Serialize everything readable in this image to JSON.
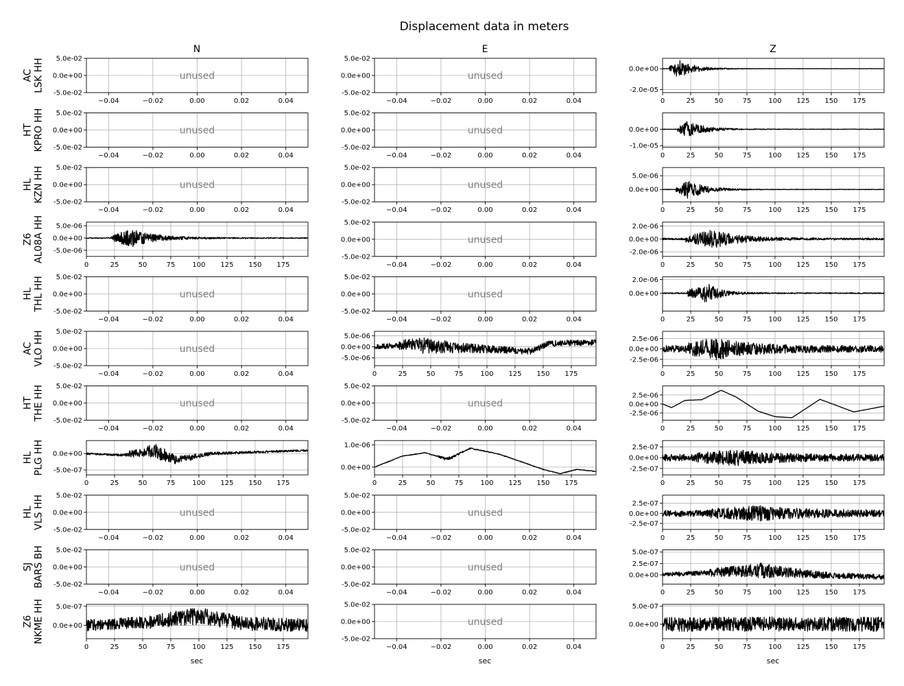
{
  "title": "Displacement data in meters",
  "column_titles": [
    "N",
    "E",
    "Z"
  ],
  "xlabel": "sec",
  "unused_label": "unused",
  "colors": {
    "trace": "#000000",
    "grid": "#b0b0b0",
    "unused_text": "#808080",
    "axes": "#000000"
  },
  "chart_data": {
    "type": "line",
    "title": "Displacement data in meters",
    "columns": [
      "N",
      "E",
      "Z"
    ],
    "xlabel": "sec",
    "grid": true,
    "unused_panel": {
      "text": "unused",
      "xlim": [
        -0.05,
        0.05
      ],
      "ylim": [
        -0.05,
        0.05
      ],
      "xticks": [
        "−0.04",
        "−0.02",
        "0.00",
        "0.02",
        "0.04"
      ],
      "yticks": [
        "5.0e-02",
        "0.0e+00",
        "-5.0e-02"
      ]
    },
    "time_xlim": [
      0,
      197
    ],
    "time_xticks": [
      "0",
      "25",
      "50",
      "75",
      "100",
      "125",
      "150",
      "175"
    ],
    "rows": [
      {
        "net": "AC",
        "sta": "LSK HH",
        "panels": [
          {
            "used": false
          },
          {
            "used": false
          },
          {
            "used": true,
            "ylim": [
              -2.3e-05,
              1e-05
            ],
            "yticks": [
              {
                "v": 0,
                "label": "0.0e+00"
              },
              {
                "v": -2e-05,
                "label": "-2.0e-05"
              }
            ],
            "onset": 6,
            "peak_t": 14,
            "amp": 9e-06,
            "decay": 14,
            "noise": 1.5e-07,
            "trend": []
          }
        ]
      },
      {
        "net": "HT",
        "sta": "KPRO HH",
        "panels": [
          {
            "used": false
          },
          {
            "used": false
          },
          {
            "used": true,
            "ylim": [
              -1.1e-05,
              1e-05
            ],
            "yticks": [
              {
                "v": 0,
                "label": "0.0e+00"
              },
              {
                "v": -1e-05,
                "label": "-1.0e-05"
              }
            ],
            "onset": 13,
            "peak_t": 22,
            "amp": 5e-06,
            "decay": 16,
            "noise": 1.5e-07,
            "trend": []
          }
        ]
      },
      {
        "net": "HL",
        "sta": "KZN HH",
        "panels": [
          {
            "used": false
          },
          {
            "used": false
          },
          {
            "used": true,
            "ylim": [
              -4.5e-06,
              8e-06
            ],
            "yticks": [
              {
                "v": 5e-06,
                "label": "5.0e-06"
              },
              {
                "v": 0,
                "label": "0.0e+00"
              }
            ],
            "onset": 12,
            "peak_t": 24,
            "amp": 3.5e-06,
            "decay": 15,
            "noise": 1e-07,
            "trend": []
          }
        ]
      },
      {
        "net": "Z6",
        "sta": "AL08A HH",
        "panels": [
          {
            "used": true,
            "ylim": [
              -7.5e-06,
              6.5e-06
            ],
            "yticks": [
              {
                "v": 5e-06,
                "label": "5.0e-06"
              },
              {
                "v": 0,
                "label": "0.0e+00"
              },
              {
                "v": -5e-06,
                "label": "-5.0e-06"
              }
            ],
            "onset": 22,
            "peak_t": 40,
            "amp": 3.5e-06,
            "decay": 22,
            "noise": 2e-07,
            "trend": []
          },
          {
            "used": false
          },
          {
            "used": true,
            "ylim": [
              -2.7e-06,
              2.6e-06
            ],
            "yticks": [
              {
                "v": 2e-06,
                "label": "2.0e-06"
              },
              {
                "v": 0,
                "label": "0.0e+00"
              },
              {
                "v": -2e-06,
                "label": "-2.0e-06"
              }
            ],
            "onset": 20,
            "peak_t": 45,
            "amp": 1.3e-06,
            "decay": 24,
            "noise": 1.5e-07,
            "trend": []
          }
        ]
      },
      {
        "net": "HL",
        "sta": "THL HH",
        "panels": [
          {
            "used": false
          },
          {
            "used": false
          },
          {
            "used": true,
            "ylim": [
              -2.6e-06,
              2.4e-06
            ],
            "yticks": [
              {
                "v": 2e-06,
                "label": "2.0e-06"
              },
              {
                "v": 0,
                "label": "0.0e+00"
              }
            ],
            "onset": 22,
            "peak_t": 40,
            "amp": 1.4e-06,
            "decay": 12,
            "noise": 8e-08,
            "trend": []
          }
        ]
      },
      {
        "net": "AC",
        "sta": "VLO HH",
        "panels": [
          {
            "used": false
          },
          {
            "used": true,
            "ylim": [
              -8.5e-06,
              7e-06
            ],
            "yticks": [
              {
                "v": 5e-06,
                "label": "5.0e-06"
              },
              {
                "v": 0,
                "label": "0.0e+00"
              },
              {
                "v": -5e-06,
                "label": "-5.0e-06"
              }
            ],
            "onset": 20,
            "peak_t": 45,
            "amp": 2.5e-06,
            "decay": 40,
            "noise": 1.2e-06,
            "trend": [
              [
                0,
                0
              ],
              [
                30,
                1e-06
              ],
              [
                60,
                0
              ],
              [
                100,
                -1e-06
              ],
              [
                140,
                -2e-06
              ],
              [
                155,
                1.5e-06
              ],
              [
                197,
                2e-06
              ]
            ]
          },
          {
            "used": true,
            "ylim": [
              -4e-06,
              4.2e-06
            ],
            "yticks": [
              {
                "v": 2.5e-06,
                "label": "2.5e-06"
              },
              {
                "v": 0,
                "label": "0.0e+00"
              },
              {
                "v": -2.5e-06,
                "label": "-2.5e-06"
              }
            ],
            "onset": 20,
            "peak_t": 47,
            "amp": 2e-06,
            "decay": 30,
            "noise": 8e-07,
            "trend": []
          }
        ]
      },
      {
        "net": "HT",
        "sta": "THE HH",
        "panels": [
          {
            "used": false
          },
          {
            "used": false
          },
          {
            "used": true,
            "ylim": [
              -4.5e-06,
              5e-06
            ],
            "yticks": [
              {
                "v": 2.5e-06,
                "label": "2.5e-06"
              },
              {
                "v": 0,
                "label": "0.0e+00"
              },
              {
                "v": -2.5e-06,
                "label": "-2.5e-06"
              }
            ],
            "onset": 0,
            "peak_t": 0,
            "amp": 0,
            "decay": 1,
            "noise": 4e-08,
            "trend": [
              [
                0,
                0
              ],
              [
                8,
                -1e-06
              ],
              [
                20,
                1e-06
              ],
              [
                35,
                1.2e-06
              ],
              [
                52,
                3.8e-06
              ],
              [
                65,
                2e-06
              ],
              [
                85,
                -2e-06
              ],
              [
                100,
                -3.5e-06
              ],
              [
                115,
                -3.8e-06
              ],
              [
                140,
                1.3e-06
              ],
              [
                170,
                -2.2e-06
              ],
              [
                197,
                -6e-07
              ]
            ]
          }
        ]
      },
      {
        "net": "HL",
        "sta": "PLG HH",
        "panels": [
          {
            "used": true,
            "ylim": [
              -6.5e-07,
              4e-07
            ],
            "yticks": [
              {
                "v": 0,
                "label": "0.0e+00"
              },
              {
                "v": -5e-07,
                "label": "-5.0e-07"
              }
            ],
            "onset": 35,
            "peak_t": 65,
            "amp": 2e-07,
            "decay": 22,
            "noise": 3e-08,
            "trend": [
              [
                0,
                0
              ],
              [
                30,
                -5e-08
              ],
              [
                60,
                1e-07
              ],
              [
                80,
                -2e-07
              ],
              [
                110,
                0
              ],
              [
                197,
                1e-07
              ]
            ]
          },
          {
            "used": true,
            "ylim": [
              -3.5e-07,
              1.2e-06
            ],
            "yticks": [
              {
                "v": 1e-06,
                "label": "1.0e-06"
              },
              {
                "v": 0,
                "label": "0.0e+00"
              }
            ],
            "onset": 55,
            "peak_t": 65,
            "amp": 7e-08,
            "decay": 12,
            "noise": 1.5e-08,
            "trend": [
              [
                0,
                0
              ],
              [
                25,
                5e-07
              ],
              [
                45,
                6.5e-07
              ],
              [
                65,
                3.5e-07
              ],
              [
                85,
                8.5e-07
              ],
              [
                110,
                6e-07
              ],
              [
                150,
                -1e-07
              ],
              [
                165,
                -3e-07
              ],
              [
                180,
                -1e-07
              ],
              [
                197,
                -2e-07
              ]
            ]
          },
          {
            "used": true,
            "ylim": [
              -4e-07,
              4e-07
            ],
            "yticks": [
              {
                "v": 2.5e-07,
                "label": "2.5e-07"
              },
              {
                "v": 0,
                "label": "0.0e+00"
              },
              {
                "v": -2.5e-07,
                "label": "-2.5e-07"
              }
            ],
            "onset": 30,
            "peak_t": 65,
            "amp": 1.2e-07,
            "decay": 30,
            "noise": 8e-08,
            "trend": []
          }
        ]
      },
      {
        "net": "HL",
        "sta": "VLS HH",
        "panels": [
          {
            "used": false
          },
          {
            "used": false
          },
          {
            "used": true,
            "ylim": [
              -4e-07,
              4.5e-07
            ],
            "yticks": [
              {
                "v": 2.5e-07,
                "label": "2.5e-07"
              },
              {
                "v": 0,
                "label": "0.0e+00"
              },
              {
                "v": -2.5e-07,
                "label": "-2.5e-07"
              }
            ],
            "onset": 40,
            "peak_t": 85,
            "amp": 1.2e-07,
            "decay": 40,
            "noise": 8e-08,
            "trend": []
          }
        ]
      },
      {
        "net": "SJ",
        "sta": "BARS BH",
        "panels": [
          {
            "used": false
          },
          {
            "used": false
          },
          {
            "used": true,
            "ylim": [
              -2e-07,
              5.5e-07
            ],
            "yticks": [
              {
                "v": 5e-07,
                "label": "5.0e-07"
              },
              {
                "v": 2.5e-07,
                "label": "2.5e-07"
              },
              {
                "v": 0,
                "label": "0.0e+00"
              }
            ],
            "onset": 40,
            "peak_t": 90,
            "amp": 1.2e-07,
            "decay": 35,
            "noise": 5e-08,
            "trend": [
              [
                0,
                0
              ],
              [
                40,
                5e-08
              ],
              [
                90,
                1e-07
              ],
              [
                140,
                0
              ],
              [
                197,
                -5e-08
              ]
            ]
          }
        ]
      },
      {
        "net": "Z6",
        "sta": "NKME HH",
        "panels": [
          {
            "used": true,
            "ylim": [
              -3.5e-07,
              5.5e-07
            ],
            "yticks": [
              {
                "v": 5e-07,
                "label": "5.0e-07"
              },
              {
                "v": 0,
                "label": "0.0e+00"
              }
            ],
            "onset": 50,
            "peak_t": 100,
            "amp": 8e-08,
            "decay": 60,
            "noise": 1.5e-07,
            "trend": [
              [
                0,
                0
              ],
              [
                60,
                1e-07
              ],
              [
                100,
                2.5e-07
              ],
              [
                140,
                5e-08
              ],
              [
                197,
                0
              ]
            ]
          },
          {
            "used": false
          },
          {
            "used": true,
            "ylim": [
              -4e-07,
              5.5e-07
            ],
            "yticks": [
              {
                "v": 5e-07,
                "label": "5.0e-07"
              },
              {
                "v": 0,
                "label": "0.0e+00"
              }
            ],
            "onset": 0,
            "peak_t": 0,
            "amp": 0,
            "decay": 1,
            "noise": 2e-07,
            "trend": []
          }
        ]
      }
    ]
  }
}
